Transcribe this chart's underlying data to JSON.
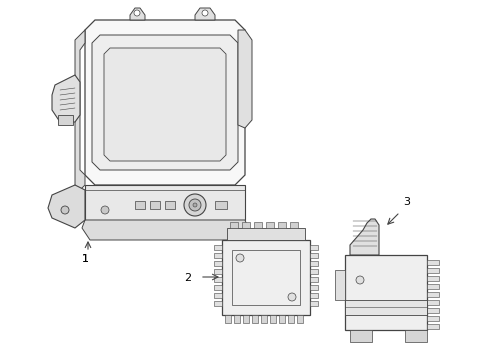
{
  "background_color": "#ffffff",
  "line_color": "#444444",
  "fill_color": "#f5f5f5",
  "fill_dark": "#e0e0e0",
  "fill_mid": "#ebebeb",
  "label_color": "#000000",
  "label_fontsize": 8,
  "fig_width": 4.9,
  "fig_height": 3.6,
  "dpi": 100
}
